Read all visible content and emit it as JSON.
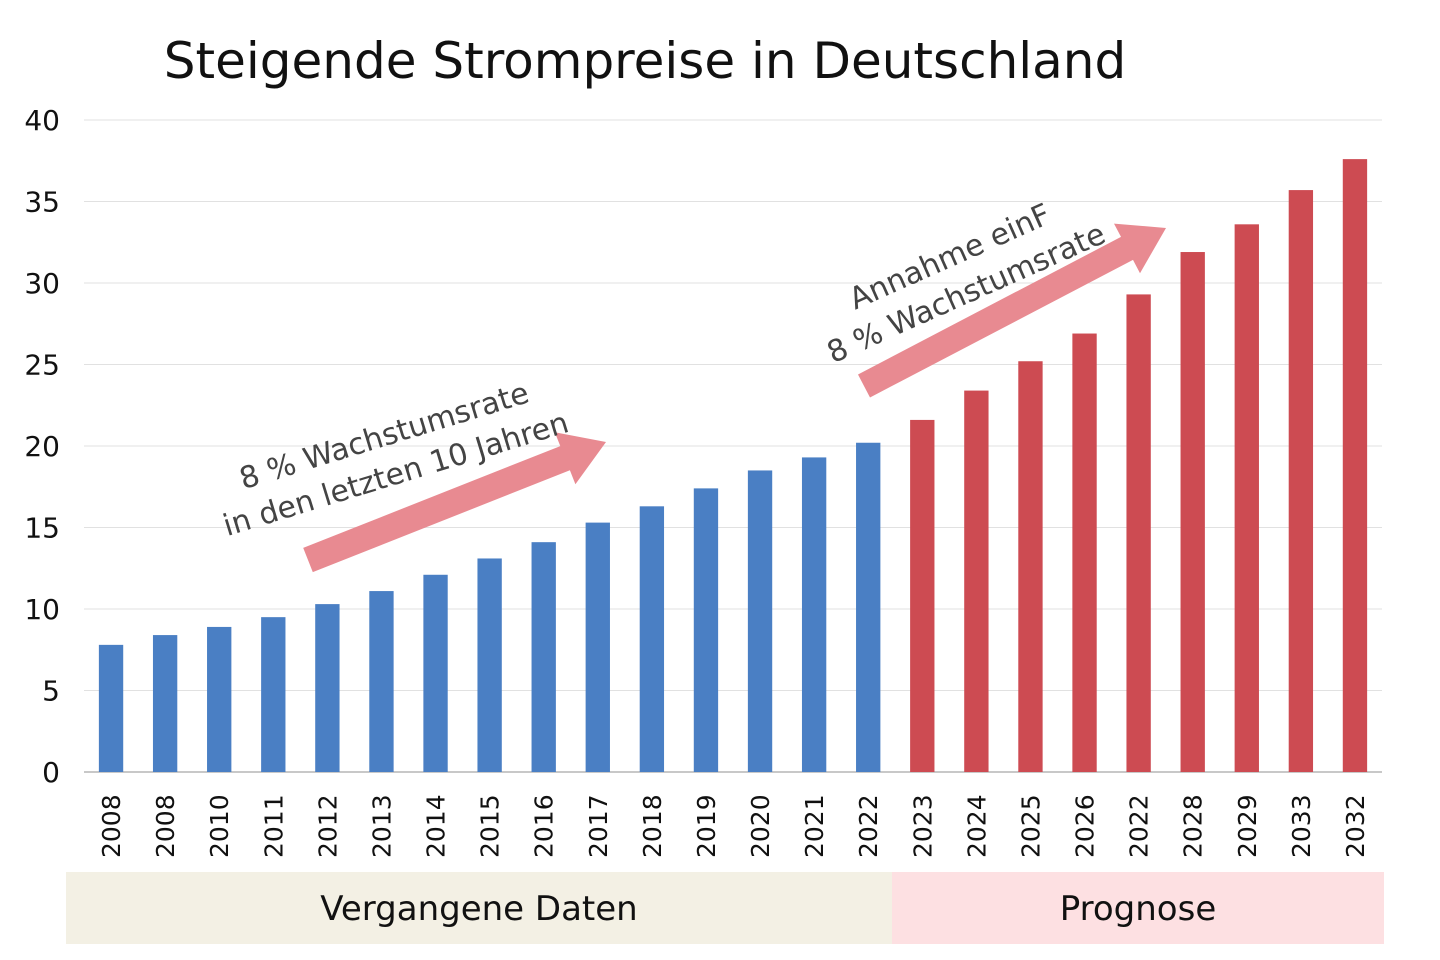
{
  "chart_data": {
    "type": "bar",
    "title": "Steigende Strompreise in Deutschland",
    "xlabel": "",
    "ylabel": "",
    "ylim": [
      0,
      40
    ],
    "yticks": [
      0,
      5,
      10,
      15,
      20,
      25,
      30,
      35,
      40
    ],
    "grid": true,
    "categories": [
      "2008",
      "2008",
      "2010",
      "2011",
      "2012",
      "2013",
      "2014",
      "2015",
      "2016",
      "2017",
      "2018",
      "2019",
      "2020",
      "2021",
      "2022",
      "2023",
      "2024",
      "2025",
      "2026",
      "2022",
      "2028",
      "2029",
      "2033",
      "2032"
    ],
    "values": [
      7.8,
      8.4,
      8.9,
      9.5,
      10.3,
      11.1,
      12.1,
      13.1,
      14.1,
      15.3,
      16.3,
      17.4,
      18.5,
      19.3,
      20.2,
      21.6,
      23.4,
      25.2,
      26.9,
      29.3,
      31.9,
      33.6,
      35.7,
      37.6
    ],
    "segments": [
      {
        "label": "Vergangene Daten",
        "first": 0,
        "last": 14,
        "bar_color": "#4a7fc4",
        "band_color": "#f3f0e4"
      },
      {
        "label": "Prognose",
        "first": 15,
        "last": 23,
        "bar_color": "#cd4b52",
        "band_color": "#fde0e2"
      }
    ],
    "arrow_color": "#e88a91",
    "annotations": [
      {
        "lines": [
          "8 % Wachstumsrate",
          "in den letzten 10 Jahren"
        ]
      },
      {
        "lines": [
          "Annahme einF",
          "8 % Wachstumsrate"
        ]
      }
    ]
  }
}
